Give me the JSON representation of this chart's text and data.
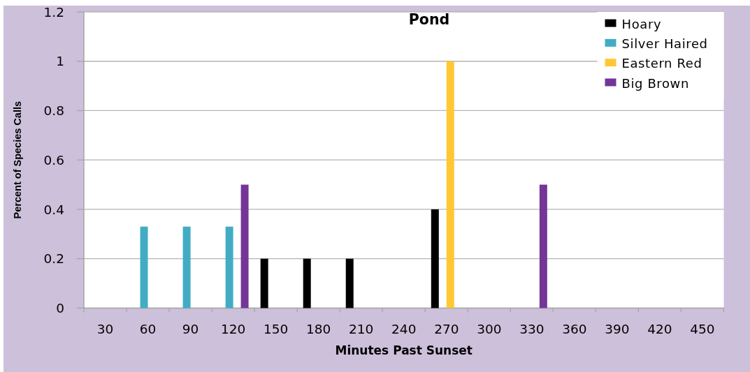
{
  "chart_data": {
    "type": "bar",
    "title": "Pond",
    "xlabel": "Minutes Past Sunset",
    "ylabel": "Percent of Species Calls",
    "categories": [
      "30",
      "60",
      "90",
      "120",
      "150",
      "180",
      "210",
      "240",
      "270",
      "300",
      "330",
      "360",
      "390",
      "420",
      "450"
    ],
    "series": [
      {
        "name": "Hoary",
        "color": "#000000",
        "values": [
          null,
          null,
          null,
          null,
          0.2,
          0.2,
          0.2,
          null,
          0.4,
          null,
          null,
          null,
          null,
          null,
          null
        ]
      },
      {
        "name": "Silver Haired",
        "color": "#42acc5",
        "values": [
          null,
          0.33,
          0.33,
          0.33,
          null,
          null,
          null,
          null,
          null,
          null,
          null,
          null,
          null,
          null,
          null
        ]
      },
      {
        "name": "Eastern Red",
        "color": "#ffc832",
        "values": [
          null,
          null,
          null,
          null,
          null,
          null,
          null,
          null,
          1,
          null,
          null,
          null,
          null,
          null,
          null
        ]
      },
      {
        "name": "Big Brown",
        "color": "#743597",
        "values": [
          null,
          null,
          null,
          0.5,
          null,
          null,
          null,
          null,
          null,
          null,
          0.5,
          null,
          null,
          null,
          null
        ]
      }
    ],
    "ylim": [
      0,
      1.2
    ],
    "yticks": [
      0,
      0.2,
      0.4,
      0.6,
      0.8,
      1,
      1.2
    ],
    "grid": "y",
    "legend": "top right"
  }
}
